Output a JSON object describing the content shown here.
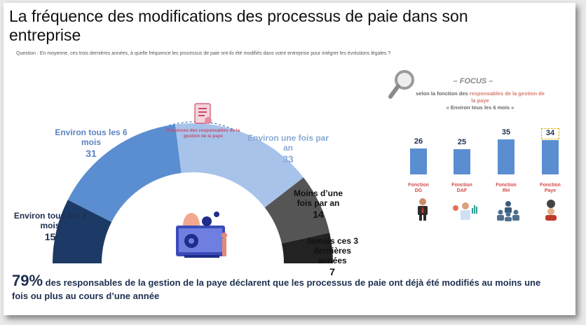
{
  "title": "La fréquence des modifications des processus de paie dans son entreprise",
  "question": "Question : En moyenne, ces trois dernières années, à quelle fréquence les processus de paie ont-ils été modifiés dans votre entreprise pour intégrer les évolutions légales ?",
  "center_label": "Réponses des responsables de la gestion de la paye",
  "chart_data": [
    {
      "type": "pie",
      "variant": "semi-donut",
      "categories": [
        "Environ tous les 3 mois",
        "Environ tous les 6 mois",
        "Environ une fois par an",
        "Moins d'une fois par an",
        "Jamais ces 3 dernières années"
      ],
      "category_labels": [
        "Environ tous les 3 mois",
        "Environ tous les 6 mois",
        "Environ une fois par an",
        "Moins d’une fois par an",
        "Jamais ces 3 dernières années"
      ],
      "values": [
        15,
        31,
        33,
        14,
        7
      ],
      "colors": [
        "#1d3a66",
        "#5b8ed1",
        "#a8c3ea",
        "#555555",
        "#222222"
      ]
    },
    {
      "type": "bar",
      "categories": [
        "Fonction DG",
        "Fonction DAF",
        "Fonction RH",
        "Fonction Paye"
      ],
      "values": [
        26,
        25,
        35,
        34
      ],
      "highlight": "Fonction Paye",
      "color": "#5b8ed1",
      "ylim": [
        0,
        40
      ]
    }
  ],
  "focus": {
    "title": "– FOCUS –",
    "line1": "selon la fonction des ",
    "line1_highlight": "responsables de la gestion de la paye",
    "line2": "« Environ tous les 6 mois »"
  },
  "footer": {
    "percent": "79%",
    "text": " des responsables de la gestion de la paye déclarent que les processus de paie ont déjà été modifiés au moins une fois ou plus au cours d’une année"
  },
  "colors": {
    "accent_dark": "#1d2f4f",
    "accent_pink": "#d77a6d"
  },
  "icons": [
    "document-icon",
    "magnifier-icon",
    "computer-gears-illustration",
    "businessman-icon",
    "finance-person-icon",
    "team-icon",
    "payroll-person-icon"
  ]
}
